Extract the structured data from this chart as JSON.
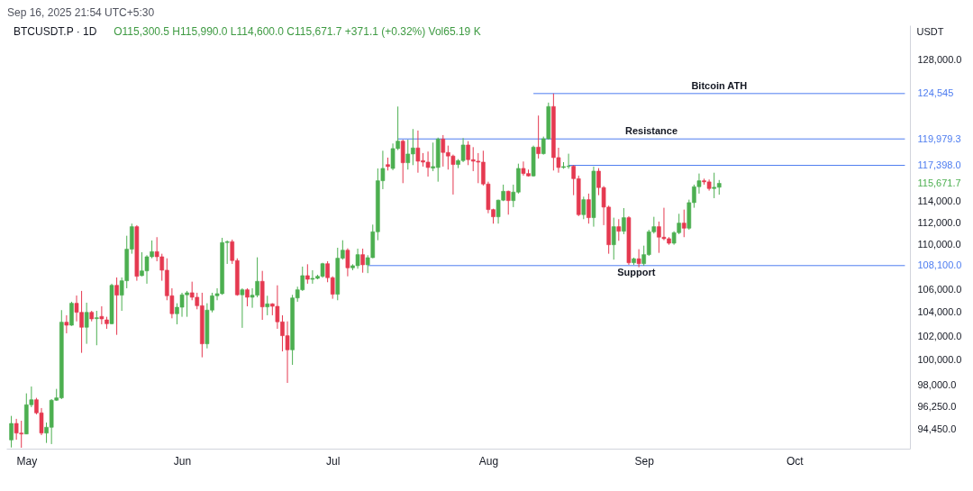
{
  "chart_data": {
    "type": "candlestick",
    "title": "BTCUSDT.P · 1D",
    "subtitle": "O115,300.5 H115,990.0 L114,600.0 C115,671.7 +371.1 (+0.32%) Vol65.19 K",
    "ylabel": "USDT",
    "x": [
      "2025-04-28",
      "2025-04-29",
      "2025-04-30",
      "2025-05-01",
      "2025-05-02",
      "2025-05-03",
      "2025-05-04",
      "2025-05-05",
      "2025-05-06",
      "2025-05-07",
      "2025-05-08",
      "2025-05-09",
      "2025-05-10",
      "2025-05-11",
      "2025-05-12",
      "2025-05-13",
      "2025-05-14",
      "2025-05-15",
      "2025-05-16",
      "2025-05-17",
      "2025-05-18",
      "2025-05-19",
      "2025-05-20",
      "2025-05-21",
      "2025-05-22",
      "2025-05-23",
      "2025-05-24",
      "2025-05-25",
      "2025-05-26",
      "2025-05-27",
      "2025-05-28",
      "2025-05-29",
      "2025-05-30",
      "2025-05-31",
      "2025-06-01",
      "2025-06-02",
      "2025-06-03",
      "2025-06-04",
      "2025-06-05",
      "2025-06-06",
      "2025-06-07",
      "2025-06-08",
      "2025-06-09",
      "2025-06-10",
      "2025-06-11",
      "2025-06-12",
      "2025-06-13",
      "2025-06-14",
      "2025-06-15",
      "2025-06-16",
      "2025-06-17",
      "2025-06-18",
      "2025-06-19",
      "2025-06-20",
      "2025-06-21",
      "2025-06-22",
      "2025-06-23",
      "2025-06-24",
      "2025-06-25",
      "2025-06-26",
      "2025-06-27",
      "2025-06-28",
      "2025-06-29",
      "2025-06-30",
      "2025-07-01",
      "2025-07-02",
      "2025-07-03",
      "2025-07-04",
      "2025-07-05",
      "2025-07-06",
      "2025-07-07",
      "2025-07-08",
      "2025-07-09",
      "2025-07-10",
      "2025-07-11",
      "2025-07-12",
      "2025-07-13",
      "2025-07-14",
      "2025-07-15",
      "2025-07-16",
      "2025-07-17",
      "2025-07-18",
      "2025-07-19",
      "2025-07-20",
      "2025-07-21",
      "2025-07-22",
      "2025-07-23",
      "2025-07-24",
      "2025-07-25",
      "2025-07-26",
      "2025-07-27",
      "2025-07-28",
      "2025-07-29",
      "2025-07-30",
      "2025-07-31",
      "2025-08-01",
      "2025-08-02",
      "2025-08-03",
      "2025-08-04",
      "2025-08-05",
      "2025-08-06",
      "2025-08-07",
      "2025-08-08",
      "2025-08-09",
      "2025-08-10",
      "2025-08-11",
      "2025-08-12",
      "2025-08-13",
      "2025-08-14",
      "2025-08-15",
      "2025-08-16",
      "2025-08-17",
      "2025-08-18",
      "2025-08-19",
      "2025-08-20",
      "2025-08-21",
      "2025-08-22",
      "2025-08-23",
      "2025-08-24",
      "2025-08-25",
      "2025-08-26",
      "2025-08-27",
      "2025-08-28",
      "2025-08-29",
      "2025-08-30",
      "2025-08-31",
      "2025-09-01",
      "2025-09-02",
      "2025-09-03",
      "2025-09-04",
      "2025-09-05",
      "2025-09-06",
      "2025-09-07",
      "2025-09-08",
      "2025-09-09",
      "2025-09-10",
      "2025-09-11",
      "2025-09-12",
      "2025-09-13",
      "2025-09-14",
      "2025-09-15",
      "2025-09-16"
    ],
    "ohlc": [
      [
        93650,
        95520,
        93070,
        94930
      ],
      [
        94930,
        95290,
        93670,
        94180
      ],
      [
        94180,
        95140,
        93050,
        94110
      ],
      [
        94110,
        97310,
        94090,
        96400
      ],
      [
        96400,
        97860,
        96210,
        96800
      ],
      [
        96800,
        96950,
        95640,
        95760
      ],
      [
        95760,
        96140,
        94020,
        94180
      ],
      [
        94180,
        95000,
        93420,
        94630
      ],
      [
        94630,
        96850,
        93330,
        96760
      ],
      [
        96760,
        97670,
        96710,
        96950
      ],
      [
        96950,
        104210,
        96850,
        103180
      ],
      [
        103180,
        103770,
        102240,
        102920
      ],
      [
        102920,
        104930,
        102870,
        104800
      ],
      [
        104800,
        105470,
        103250,
        104020
      ],
      [
        104020,
        105870,
        100610,
        102750
      ],
      [
        102750,
        104850,
        101360,
        104020
      ],
      [
        104020,
        104150,
        103250,
        103460
      ],
      [
        103480,
        104150,
        101240,
        103560
      ],
      [
        103670,
        104540,
        103000,
        103460
      ],
      [
        103380,
        103640,
        102620,
        103050
      ],
      [
        103050,
        106500,
        103000,
        106360
      ],
      [
        106360,
        107050,
        102110,
        105500
      ],
      [
        105500,
        107050,
        104150,
        106760
      ],
      [
        106760,
        110790,
        106100,
        109570
      ],
      [
        109570,
        111900,
        109160,
        111620
      ],
      [
        111620,
        111760,
        106760,
        107150
      ],
      [
        107210,
        109300,
        107150,
        107630
      ],
      [
        107630,
        109030,
        106500,
        108890
      ],
      [
        108890,
        110360,
        108750,
        109350
      ],
      [
        109350,
        110660,
        108490,
        108890
      ],
      [
        108890,
        109160,
        106760,
        107690
      ],
      [
        107690,
        108750,
        105060,
        105450
      ],
      [
        105450,
        106100,
        103510,
        103900
      ],
      [
        103900,
        104800,
        103000,
        104460
      ],
      [
        104460,
        105710,
        103640,
        105530
      ],
      [
        105530,
        105870,
        103640,
        105710
      ],
      [
        105710,
        106680,
        105060,
        105320
      ],
      [
        105320,
        105710,
        104280,
        104590
      ],
      [
        104590,
        105710,
        100240,
        101360
      ],
      [
        101360,
        104800,
        100980,
        104210
      ],
      [
        104210,
        105710,
        104020,
        105450
      ],
      [
        105450,
        106100,
        105060,
        105630
      ],
      [
        105630,
        110600,
        105530,
        110170
      ],
      [
        110170,
        110360,
        108250,
        110250
      ],
      [
        110250,
        110440,
        108250,
        108550
      ],
      [
        108550,
        108750,
        105450,
        105530
      ],
      [
        105530,
        106100,
        102700,
        105970
      ],
      [
        105970,
        106100,
        104540,
        105320
      ],
      [
        105320,
        106100,
        104410,
        105500
      ],
      [
        105500,
        108840,
        105320,
        106710
      ],
      [
        106710,
        107630,
        103380,
        104490
      ],
      [
        104490,
        105450,
        103770,
        104750
      ],
      [
        104750,
        104800,
        103770,
        104540
      ],
      [
        104540,
        106360,
        102620,
        103210
      ],
      [
        103210,
        103770,
        100730,
        102040
      ],
      [
        102040,
        103250,
        98150,
        100860
      ],
      [
        100860,
        105530,
        99620,
        105260
      ],
      [
        105260,
        106240,
        104930,
        105970
      ],
      [
        105970,
        108010,
        105870,
        107210
      ],
      [
        107210,
        108220,
        106500,
        106890
      ],
      [
        106890,
        107690,
        106500,
        106970
      ],
      [
        106970,
        107290,
        106890,
        107150
      ],
      [
        107150,
        108350,
        107030,
        108270
      ],
      [
        108270,
        108490,
        106630,
        107030
      ],
      [
        107030,
        107150,
        105190,
        105580
      ],
      [
        105580,
        109700,
        105060,
        108760
      ],
      [
        108760,
        110380,
        108630,
        109480
      ],
      [
        109480,
        109650,
        107150,
        107900
      ],
      [
        107900,
        108220,
        107690,
        108090
      ],
      [
        108090,
        109620,
        107820,
        109080
      ],
      [
        109080,
        109620,
        107470,
        108170
      ],
      [
        108170,
        109030,
        107430,
        108810
      ],
      [
        108810,
        111810,
        108760,
        111150
      ],
      [
        111150,
        117100,
        110380,
        115920
      ],
      [
        115920,
        118820,
        115120,
        117100
      ],
      [
        117470,
        118150,
        116900,
        117280
      ],
      [
        117100,
        119530,
        116930,
        119030
      ],
      [
        119030,
        123220,
        118880,
        119760
      ],
      [
        119760,
        119910,
        115690,
        117650
      ],
      [
        117650,
        119910,
        116990,
        118500
      ],
      [
        118500,
        120960,
        117420,
        119090
      ],
      [
        119090,
        120810,
        116690,
        117800
      ],
      [
        117860,
        118590,
        117280,
        117710
      ],
      [
        117710,
        118740,
        116320,
        117190
      ],
      [
        117130,
        119620,
        116840,
        117280
      ],
      [
        117190,
        120110,
        115830,
        119970
      ],
      [
        119970,
        120360,
        117280,
        118650
      ],
      [
        118650,
        119320,
        116990,
        118300
      ],
      [
        118300,
        118440,
        114610,
        117480
      ],
      [
        117480,
        118000,
        117130,
        117860
      ],
      [
        117860,
        120060,
        117710,
        119380
      ],
      [
        119380,
        119760,
        117420,
        117950
      ],
      [
        117950,
        119170,
        116840,
        117800
      ],
      [
        117800,
        118590,
        115690,
        117710
      ],
      [
        117710,
        118820,
        115460,
        115610
      ],
      [
        115610,
        115830,
        112860,
        113200
      ],
      [
        113200,
        113280,
        111900,
        112530
      ],
      [
        112530,
        114130,
        111900,
        114080
      ],
      [
        114080,
        115550,
        113990,
        114920
      ],
      [
        114920,
        114980,
        112730,
        114040
      ],
      [
        114040,
        115550,
        113430,
        114840
      ],
      [
        114840,
        117560,
        114700,
        117100
      ],
      [
        117100,
        117770,
        116410,
        116610
      ],
      [
        116610,
        116990,
        116320,
        116380
      ],
      [
        116380,
        119320,
        116320,
        119170
      ],
      [
        119170,
        122310,
        118060,
        118530
      ],
      [
        118530,
        120210,
        118440,
        120000
      ],
      [
        120000,
        123620,
        119910,
        123220
      ],
      [
        123220,
        124545,
        116900,
        118150
      ],
      [
        118150,
        119110,
        116690,
        117190
      ],
      [
        117190,
        117710,
        117070,
        117280
      ],
      [
        117280,
        118530,
        117070,
        117320
      ],
      [
        117320,
        117420,
        114550,
        116120
      ],
      [
        116120,
        116410,
        112590,
        112730
      ],
      [
        112730,
        114410,
        112310,
        114130
      ],
      [
        114130,
        114700,
        111900,
        112450
      ],
      [
        112450,
        117280,
        111620,
        116840
      ],
      [
        116840,
        117130,
        114550,
        115270
      ],
      [
        115270,
        115410,
        111760,
        113430
      ],
      [
        113430,
        113570,
        109160,
        109970
      ],
      [
        109970,
        112450,
        108630,
        111620
      ],
      [
        111620,
        112310,
        110330,
        111200
      ],
      [
        111200,
        113340,
        110930,
        112450
      ],
      [
        112450,
        112590,
        108170,
        108350
      ],
      [
        108350,
        108810,
        108170,
        108710
      ],
      [
        108710,
        109570,
        107950,
        108270
      ],
      [
        108270,
        109890,
        108090,
        109080
      ],
      [
        109080,
        111340,
        108970,
        111150
      ],
      [
        111150,
        112530,
        110990,
        111620
      ],
      [
        111620,
        112090,
        109240,
        110660
      ],
      [
        110660,
        113370,
        110380,
        110520
      ],
      [
        110520,
        110660,
        109970,
        110110
      ],
      [
        110110,
        111200,
        109970,
        111070
      ],
      [
        111070,
        112810,
        110930,
        111950
      ],
      [
        111950,
        113200,
        110660,
        111480
      ],
      [
        111480,
        114130,
        111340,
        113850
      ],
      [
        113850,
        115550,
        113370,
        115350
      ],
      [
        115350,
        116610,
        114700,
        115920
      ],
      [
        115920,
        116120,
        115550,
        115810
      ],
      [
        115810,
        116040,
        114980,
        115180
      ],
      [
        115180,
        116690,
        114270,
        115300
      ],
      [
        115300.5,
        115990,
        114600,
        115671.7
      ]
    ],
    "colors": [
      "#4caf50",
      "#e53950",
      "#e53950",
      "#4caf50",
      "#4caf50",
      "#e53950",
      "#e53950",
      "#4caf50",
      "#4caf50",
      "#4caf50",
      "#4caf50",
      "#e53950",
      "#4caf50",
      "#e53950",
      "#e53950",
      "#4caf50",
      "#e53950",
      "#4caf50",
      "#e53950",
      "#e53950",
      "#4caf50",
      "#e53950",
      "#4caf50",
      "#4caf50",
      "#4caf50",
      "#e53950",
      "#4caf50",
      "#4caf50",
      "#4caf50",
      "#e53950",
      "#e53950",
      "#e53950",
      "#e53950",
      "#4caf50",
      "#4caf50",
      "#4caf50",
      "#e53950",
      "#e53950",
      "#e53950",
      "#4caf50",
      "#4caf50",
      "#4caf50",
      "#4caf50",
      "#4caf50",
      "#e53950",
      "#e53950",
      "#4caf50",
      "#e53950",
      "#4caf50",
      "#4caf50",
      "#e53950",
      "#4caf50",
      "#e53950",
      "#e53950",
      "#e53950",
      "#e53950",
      "#4caf50",
      "#4caf50",
      "#4caf50",
      "#e53950",
      "#4caf50",
      "#4caf50",
      "#4caf50",
      "#e53950",
      "#e53950",
      "#4caf50",
      "#4caf50",
      "#e53950",
      "#4caf50",
      "#4caf50",
      "#e53950",
      "#4caf50",
      "#4caf50",
      "#4caf50",
      "#4caf50",
      "#e53950",
      "#4caf50",
      "#4caf50",
      "#e53950",
      "#4caf50",
      "#4caf50",
      "#e53950",
      "#e53950",
      "#e53950",
      "#4caf50",
      "#4caf50",
      "#e53950",
      "#e53950",
      "#e53950",
      "#4caf50",
      "#4caf50",
      "#e53950",
      "#e53950",
      "#e53950",
      "#e53950",
      "#e53950",
      "#e53950",
      "#4caf50",
      "#4caf50",
      "#e53950",
      "#4caf50",
      "#4caf50",
      "#e53950",
      "#e53950",
      "#4caf50",
      "#e53950",
      "#4caf50",
      "#4caf50",
      "#e53950",
      "#e53950",
      "#4caf50",
      "#4caf50",
      "#e53950",
      "#e53950",
      "#4caf50",
      "#e53950",
      "#4caf50",
      "#e53950",
      "#e53950",
      "#e53950",
      "#4caf50",
      "#e53950",
      "#4caf50",
      "#e53950",
      "#4caf50",
      "#e53950",
      "#4caf50",
      "#4caf50",
      "#4caf50",
      "#e53950",
      "#e53950",
      "#e53950",
      "#4caf50",
      "#4caf50",
      "#e53950",
      "#4caf50",
      "#4caf50",
      "#4caf50",
      "#e53950",
      "#e53950",
      "#4caf50",
      "#4caf50"
    ],
    "series": [
      {
        "type": "line",
        "name": "Bitcoin ATH",
        "x": [
          "2025-08-10",
          "2025-10-23"
        ],
        "values": [
          124545,
          124545
        ],
        "color": "#4d7cf0"
      },
      {
        "type": "line",
        "name": "Resistance",
        "x": [
          "2025-07-14",
          "2025-10-23"
        ],
        "values": [
          119979.3,
          119979.3
        ],
        "color": "#4d7cf0"
      },
      {
        "type": "line",
        "x": [
          "2025-08-17",
          "2025-10-23"
        ],
        "values": [
          117398,
          117398
        ],
        "color": "#4d7cf0"
      },
      {
        "type": "line",
        "name": "Support",
        "x": [
          "2025-07-08",
          "2025-10-23"
        ],
        "values": [
          108100,
          108100
        ],
        "color": "#4d7cf0"
      }
    ],
    "annotations": [
      "Sep 16, 2025 21:54 UTC+5:30"
    ],
    "xlim": [
      "2025-04-27",
      "2025-10-24"
    ],
    "ylim": [
      92980,
      131750
    ],
    "log": true,
    "grid": false,
    "xticks": [
      {
        "value": "2025-05-01",
        "label": "May"
      },
      {
        "value": "2025-06-01",
        "label": "Jun"
      },
      {
        "value": "2025-07-01",
        "label": "Jul"
      },
      {
        "value": "2025-08-01",
        "label": "Aug"
      },
      {
        "value": "2025-09-01",
        "label": "Sep"
      },
      {
        "value": "2025-10-01",
        "label": "Oct"
      }
    ],
    "yticks": [
      {
        "value": 128000,
        "label": "128,000.0"
      },
      {
        "value": 124545,
        "label": "124,545"
      },
      {
        "value": 119979.3,
        "label": "119,979.3"
      },
      {
        "value": 117398,
        "label": "117,398.0"
      },
      {
        "value": 115671.7,
        "label": "115,671.7"
      },
      {
        "value": 114000,
        "label": "114,000.0"
      },
      {
        "value": 112000,
        "label": "112,000.0"
      },
      {
        "value": 110000,
        "label": "110,000.0"
      },
      {
        "value": 108100,
        "label": "108,100.0"
      },
      {
        "value": 106000,
        "label": "106,000.0"
      },
      {
        "value": 104000,
        "label": "104,000.0"
      },
      {
        "value": 102000,
        "label": "102,000.0"
      },
      {
        "value": 100000,
        "label": "100,000.0"
      },
      {
        "value": 98000,
        "label": "98,000.0"
      },
      {
        "value": 96250,
        "label": "96,250.0"
      },
      {
        "value": 94450,
        "label": "94,450.0"
      }
    ]
  }
}
